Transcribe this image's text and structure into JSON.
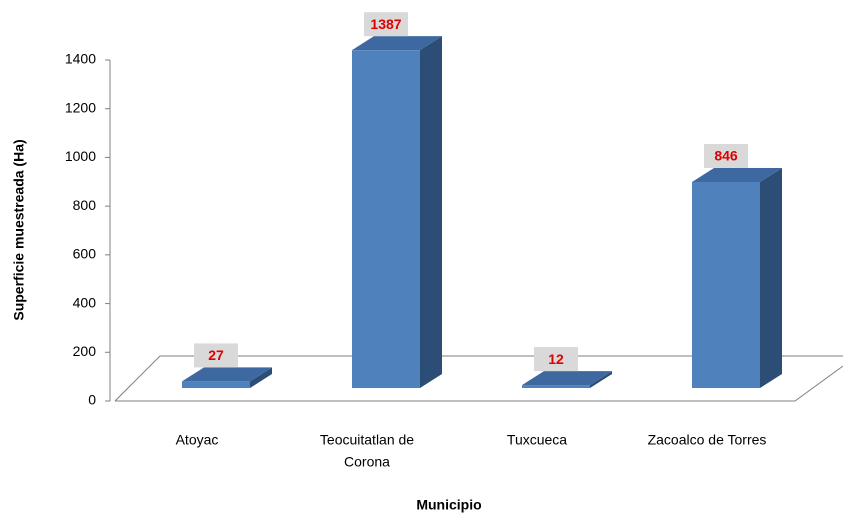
{
  "chart_data": {
    "type": "bar3d",
    "categories": [
      [
        "Atoyac"
      ],
      [
        "Teocuitatlan de",
        "Corona"
      ],
      [
        "Tuxcueca"
      ],
      [
        "Zacoalco de Torres"
      ]
    ],
    "values": [
      27,
      1387,
      12,
      846
    ],
    "color": "#4f81bd",
    "side_color": "#2c4d75",
    "top_color": "#3d69a0",
    "ylim": [
      0,
      1400
    ],
    "yticks": [
      0,
      200,
      400,
      600,
      800,
      1000,
      1200,
      1400
    ],
    "y_label": "Superficie muestreada (Ha)",
    "x_label": "Municipio"
  }
}
